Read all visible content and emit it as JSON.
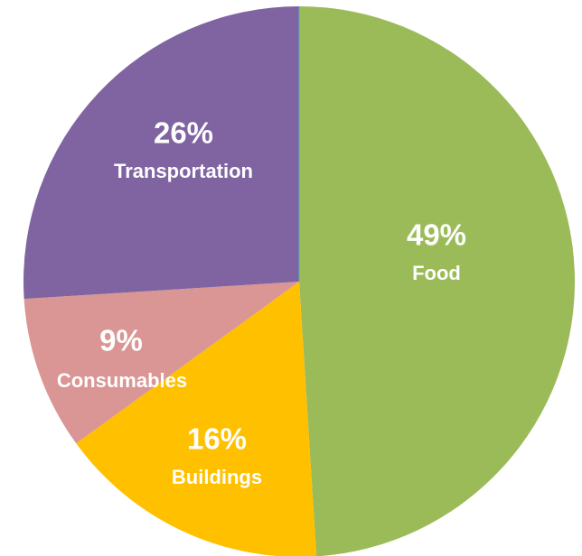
{
  "chart_data": {
    "type": "pie",
    "start_angle_deg": 0,
    "direction": "clockwise",
    "slices": [
      {
        "label": "Food",
        "value": 49,
        "value_label": "49%",
        "color": "#9BBB59"
      },
      {
        "label": "Buildings",
        "value": 16,
        "value_label": "16%",
        "color": "#FFC000"
      },
      {
        "label": "Consumables",
        "value": 9,
        "value_label": "9%",
        "color": "#D99694"
      },
      {
        "label": "Transportation",
        "value": 26,
        "value_label": "26%",
        "color": "#8064A2"
      }
    ],
    "legend": "none",
    "data_labels": "inside"
  }
}
